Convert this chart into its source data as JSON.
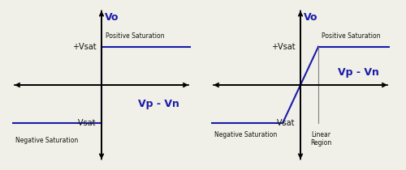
{
  "left_chart": {
    "title": "Vo",
    "xlabel": "Vp - Vn",
    "vsat_label_pos": "+Vsat",
    "neg_vsat_label": "-Vsat",
    "pos_sat_label": "Positive Saturation",
    "neg_sat_label": "Negative Saturation",
    "curve_color": "#1a1aaa",
    "vsat": 1.0,
    "xlim": [
      -2.5,
      2.5
    ],
    "ylim": [
      -2.0,
      2.0
    ]
  },
  "right_chart": {
    "title": "Vo",
    "xlabel": "Vp - Vn",
    "vsat_label_pos": "+Vsat",
    "neg_vsat_label": "-Vsat",
    "pos_sat_label": "Positive Saturation",
    "neg_sat_label": "Negative Saturation",
    "linear_label": "Linear\nRegion",
    "curve_color": "#1a1aaa",
    "vsat": 1.0,
    "linear_x_break": 0.5,
    "xlim": [
      -2.5,
      2.5
    ],
    "ylim": [
      -2.0,
      2.0
    ]
  },
  "bg_color": "#f0f0e8",
  "curve_lw": 1.5,
  "axis_lw": 1.3,
  "font_color_dark": "#111111",
  "font_color_blue": "#1a1aaa",
  "axis_arrow_style": "->"
}
